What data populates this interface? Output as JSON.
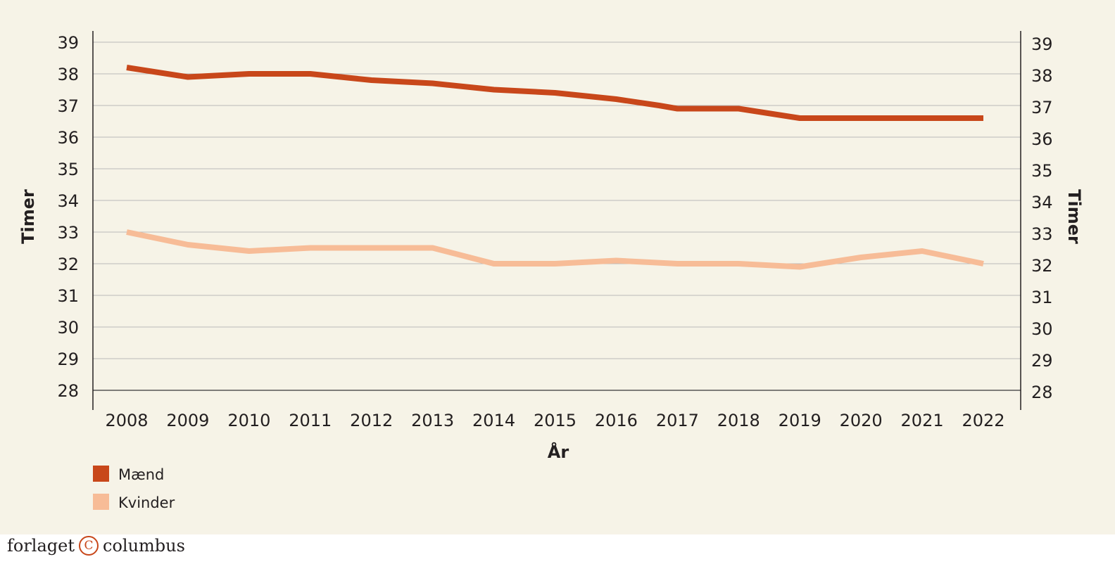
{
  "chart_data": {
    "type": "line",
    "xlabel": "År",
    "ylabel": "Timer",
    "ylabel_right": "Timer",
    "ylim": [
      28,
      39
    ],
    "yticks": [
      39,
      38,
      37,
      36,
      35,
      34,
      33,
      32,
      31,
      30,
      29,
      28
    ],
    "grid": true,
    "legend_position": "bottom-left",
    "categories": [
      "2008",
      "2009",
      "2010",
      "2011",
      "2012",
      "2013",
      "2014",
      "2015",
      "2016",
      "2017",
      "2018",
      "2019",
      "2020",
      "2021",
      "2022"
    ],
    "series": [
      {
        "name": "Mænd",
        "color": "#c8471a",
        "points": [
          [
            2008,
            38.2
          ],
          [
            2009,
            37.9
          ],
          [
            2010,
            38.0
          ],
          [
            2011,
            38.0
          ],
          [
            2012,
            37.8
          ],
          [
            2013,
            37.7
          ],
          [
            2014,
            37.5
          ],
          [
            2015,
            37.4
          ],
          [
            2016,
            37.2
          ],
          [
            2016.7,
            37.0
          ],
          [
            2017,
            36.9
          ],
          [
            2018,
            36.9
          ],
          [
            2019,
            36.6
          ],
          [
            2020,
            36.6
          ],
          [
            2021,
            36.6
          ],
          [
            2022,
            36.6
          ]
        ]
      },
      {
        "name": "Kvinder",
        "color": "#f7bc97",
        "points": [
          [
            2008,
            33.0
          ],
          [
            2009,
            32.6
          ],
          [
            2010,
            32.4
          ],
          [
            2011,
            32.5
          ],
          [
            2012,
            32.5
          ],
          [
            2013,
            32.5
          ],
          [
            2014,
            32.0
          ],
          [
            2015,
            32.0
          ],
          [
            2016,
            32.1
          ],
          [
            2017,
            32.0
          ],
          [
            2018,
            32.0
          ],
          [
            2019,
            31.9
          ],
          [
            2020,
            32.2
          ],
          [
            2021,
            32.4
          ],
          [
            2022,
            32.0
          ]
        ]
      }
    ]
  },
  "footer": {
    "brand_left": "forlaget",
    "brand_mark": "C",
    "brand_right": "columbus"
  }
}
